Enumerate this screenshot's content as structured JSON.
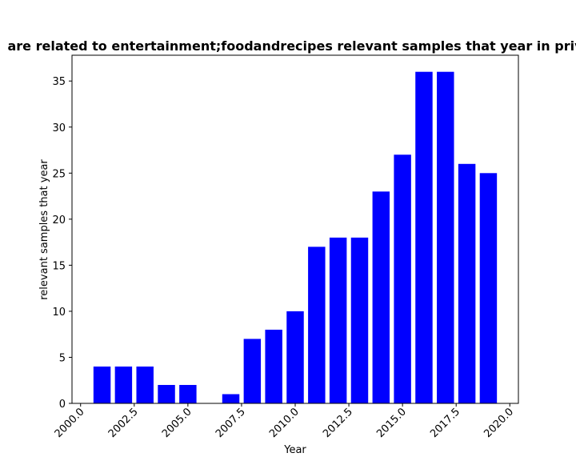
{
  "chart_data": {
    "type": "bar",
    "title": "are related to entertainment;foodandrecipes relevant samples that year in priv",
    "xlabel": "Year",
    "ylabel": "relevant samples that year",
    "x": [
      2001,
      2002,
      2003,
      2004,
      2005,
      2007,
      2008,
      2009,
      2010,
      2011,
      2012,
      2013,
      2014,
      2015,
      2016,
      2017,
      2018,
      2019
    ],
    "values": [
      4,
      4,
      4,
      2,
      2,
      1,
      7,
      8,
      10,
      17,
      18,
      18,
      23,
      27,
      36,
      36,
      26,
      25
    ],
    "xlim": [
      1999.6,
      2020.4
    ],
    "ylim": [
      0,
      37.8
    ],
    "xticks": [
      2000.0,
      2002.5,
      2005.0,
      2007.5,
      2010.0,
      2012.5,
      2015.0,
      2017.5,
      2020.0
    ],
    "xtick_labels": [
      "2000.0",
      "2002.5",
      "2005.0",
      "2007.5",
      "2010.0",
      "2012.5",
      "2015.0",
      "2017.5",
      "2020.0"
    ],
    "yticks": [
      0,
      5,
      10,
      15,
      20,
      25,
      30,
      35
    ],
    "ytick_labels": [
      "0",
      "5",
      "10",
      "15",
      "20",
      "25",
      "30",
      "35"
    ],
    "bar_color": "#0000ff",
    "grid": false,
    "legend": "none"
  }
}
